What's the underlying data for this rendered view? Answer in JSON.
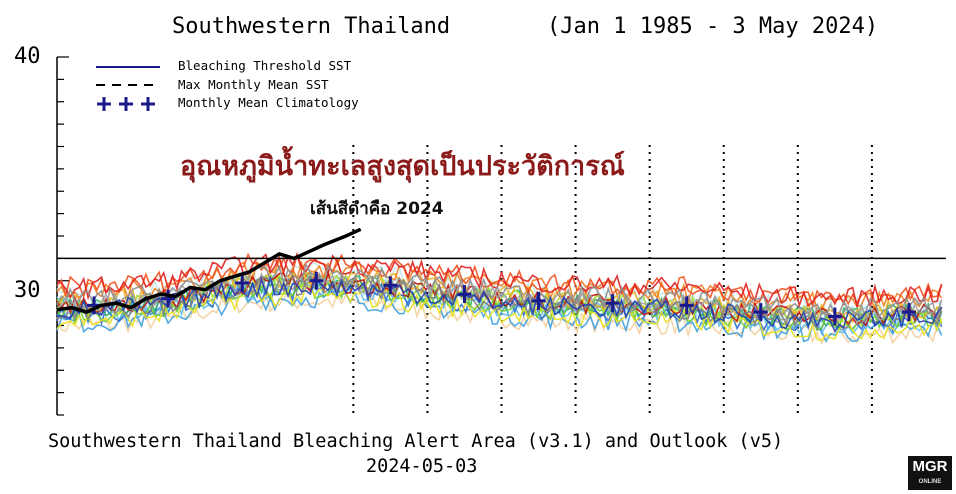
{
  "header": {
    "title_left": "Southwestern Thailand",
    "title_right": "(Jan 1 1985 - 3 May 2024)"
  },
  "legend": [
    {
      "label": "Bleaching Threshold SST",
      "style": "solid",
      "color": "#1a1a8c"
    },
    {
      "label": "Max Monthly Mean SST",
      "style": "dashed",
      "color": "#000000"
    },
    {
      "label": "Monthly Mean Climatology",
      "style": "plus",
      "color": "#1a1a8c"
    }
  ],
  "annotations": {
    "headline": "อุณหภูมิน้ำทะเลสูงสุดเป็นประวัติการณ์",
    "subtitle": "เส้นสีดำคือ 2024"
  },
  "footer": {
    "line1": "Southwestern Thailand Bleaching Alert Area (v3.1) and Outlook (v5)",
    "line2": "2024-05-03"
  },
  "logo": {
    "main": "MGR",
    "sub": "ONLINE"
  },
  "chart_data": {
    "type": "line",
    "title": "Southwestern Thailand",
    "subtitle": "(Jan 1 1985 - 3 May 2024)",
    "xlabel": "",
    "ylabel": "",
    "ylim": [
      24,
      40
    ],
    "y_tick_labels": [
      "40",
      "30"
    ],
    "bleaching_threshold": 31.0,
    "max_monthly_mean": 30.0,
    "climatology": {
      "name": "Monthly Mean Climatology",
      "x": [
        0.5,
        1.5,
        2.5,
        3.5,
        4.5,
        5.5,
        6.5,
        7.5,
        8.5,
        9.5,
        10.5,
        11.5
      ],
      "values": [
        28.9,
        29.2,
        29.9,
        30.0,
        29.8,
        29.4,
        29.1,
        29.0,
        28.9,
        28.6,
        28.4,
        28.6
      ]
    },
    "series": [
      {
        "name": "2024",
        "color": "#000000",
        "x": [
          0.0,
          0.2,
          0.4,
          0.6,
          0.8,
          1.0,
          1.2,
          1.4,
          1.6,
          1.8,
          2.0,
          2.2,
          2.4,
          2.6,
          2.8,
          3.0,
          3.2,
          3.4,
          3.6,
          3.9,
          4.1
        ],
        "values": [
          28.7,
          28.8,
          28.6,
          28.9,
          29.0,
          28.8,
          29.2,
          29.4,
          29.3,
          29.7,
          29.6,
          30.0,
          30.2,
          30.4,
          30.8,
          31.2,
          31.0,
          31.3,
          31.6,
          32.0,
          32.3
        ]
      }
    ],
    "vertical_grid_months": [
      4,
      5,
      6,
      7,
      8,
      9,
      10,
      11
    ],
    "x_range_months": [
      0,
      12
    ]
  }
}
